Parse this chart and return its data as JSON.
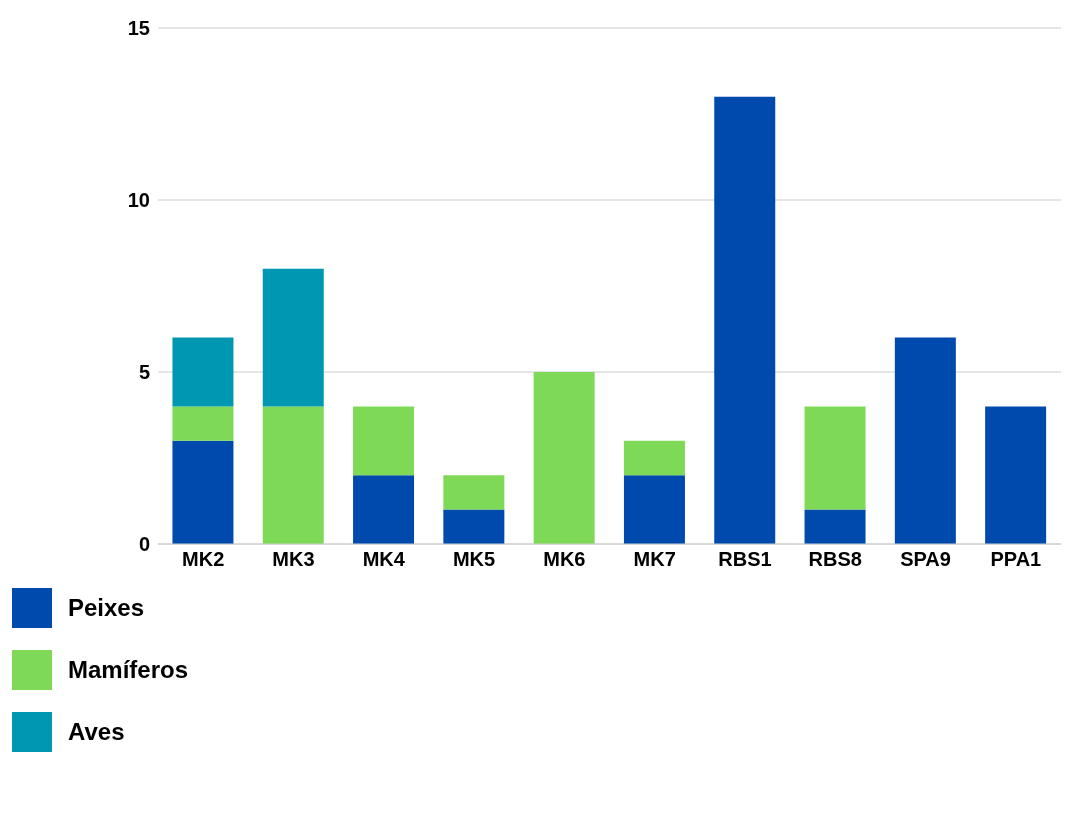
{
  "chart_data": {
    "type": "bar",
    "stacked": true,
    "categories": [
      "MK2",
      "MK3",
      "MK4",
      "MK5",
      "MK6",
      "MK7",
      "RBS1",
      "RBS8",
      "SPA9",
      "PPA1"
    ],
    "series": [
      {
        "name": "Peixes",
        "color": "#004aad",
        "values": [
          3,
          0,
          2,
          1,
          0,
          2,
          13,
          1,
          6,
          4
        ]
      },
      {
        "name": "Mamíferos",
        "color": "#7ed957",
        "values": [
          1,
          4,
          2,
          1,
          5,
          1,
          0,
          3,
          0,
          0
        ]
      },
      {
        "name": "Aves",
        "color": "#0097b2",
        "values": [
          2,
          4,
          0,
          0,
          0,
          0,
          0,
          0,
          0,
          0
        ]
      }
    ],
    "ylim": [
      0,
      15
    ],
    "yticks": [
      0,
      5,
      10,
      15
    ],
    "grid": "y",
    "legend": "bottom left"
  }
}
